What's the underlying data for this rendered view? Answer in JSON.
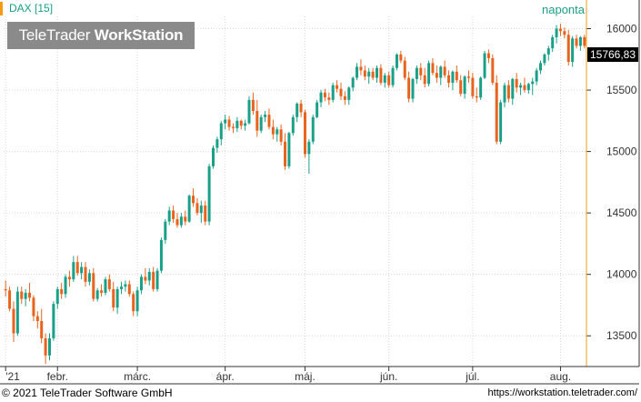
{
  "header": {
    "symbol_label": "DAX [15]",
    "logo_text_light": "TeleTrader ",
    "logo_text_bold": "WorkStation",
    "period_label": "naponta",
    "last_price_label": "15766,83"
  },
  "footer": {
    "copyright": "© 2021  TeleTrader Software GmbH",
    "url": "https://workstation.teletrader.com/"
  },
  "colors": {
    "up": "#1aa088",
    "down": "#e8641e",
    "grid": "#d8d8d8",
    "accent": "#f39c12"
  },
  "chart_data": {
    "type": "candlestick",
    "ylim": [
      13250,
      16100
    ],
    "y_ticks": [
      13500,
      14000,
      14500,
      15000,
      15500,
      16000
    ],
    "y_tick_labels": [
      "13500",
      "14000",
      "14500",
      "15000",
      "15500",
      "16000"
    ],
    "x_ticks": [
      {
        "index": 0,
        "label": "'21"
      },
      {
        "index": 13,
        "label": "febr."
      },
      {
        "index": 33,
        "label": "márc."
      },
      {
        "index": 55,
        "label": "ápr."
      },
      {
        "index": 75,
        "label": "máj."
      },
      {
        "index": 96,
        "label": "jún."
      },
      {
        "index": 117,
        "label": "júl."
      },
      {
        "index": 139,
        "label": "aug."
      }
    ],
    "candles": [
      [
        13880,
        13950,
        13820,
        13870
      ],
      [
        13870,
        13900,
        13700,
        13720
      ],
      [
        13720,
        13780,
        13450,
        13520
      ],
      [
        13520,
        13900,
        13500,
        13860
      ],
      [
        13860,
        13900,
        13760,
        13800
      ],
      [
        13800,
        13880,
        13740,
        13850
      ],
      [
        13850,
        13930,
        13780,
        13810
      ],
      [
        13810,
        13830,
        13620,
        13660
      ],
      [
        13660,
        13700,
        13560,
        13620
      ],
      [
        13620,
        13720,
        13440,
        13480
      ],
      [
        13480,
        13520,
        13270,
        13340
      ],
      [
        13340,
        13520,
        13300,
        13480
      ],
      [
        13480,
        13780,
        13460,
        13760
      ],
      [
        13760,
        13900,
        13720,
        13880
      ],
      [
        13880,
        13930,
        13800,
        13840
      ],
      [
        13840,
        14000,
        13810,
        13980
      ],
      [
        13980,
        14030,
        13900,
        13960
      ],
      [
        13960,
        14150,
        13940,
        14100
      ],
      [
        14100,
        14150,
        13990,
        14010
      ],
      [
        14010,
        14100,
        13960,
        14060
      ],
      [
        14060,
        14100,
        13900,
        13940
      ],
      [
        13940,
        14040,
        13910,
        14010
      ],
      [
        14010,
        14050,
        13780,
        13800
      ],
      [
        13800,
        13890,
        13780,
        13870
      ],
      [
        13870,
        13920,
        13820,
        13850
      ],
      [
        13850,
        13980,
        13830,
        13960
      ],
      [
        13960,
        14000,
        13860,
        13880
      ],
      [
        13880,
        13940,
        13700,
        13730
      ],
      [
        13730,
        13900,
        13680,
        13880
      ],
      [
        13880,
        13940,
        13840,
        13900
      ],
      [
        13900,
        13950,
        13860,
        13920
      ],
      [
        13920,
        13950,
        13820,
        13840
      ],
      [
        13840,
        13860,
        13660,
        13700
      ],
      [
        13700,
        13900,
        13660,
        13870
      ],
      [
        13870,
        14000,
        13840,
        13980
      ],
      [
        13980,
        14050,
        13920,
        13950
      ],
      [
        13950,
        14050,
        13910,
        14020
      ],
      [
        14020,
        14060,
        13860,
        13880
      ],
      [
        13880,
        14050,
        13860,
        14030
      ],
      [
        14030,
        14300,
        14010,
        14280
      ],
      [
        14280,
        14450,
        14250,
        14430
      ],
      [
        14430,
        14550,
        14400,
        14520
      ],
      [
        14520,
        14560,
        14420,
        14450
      ],
      [
        14450,
        14500,
        14380,
        14400
      ],
      [
        14400,
        14500,
        14380,
        14470
      ],
      [
        14470,
        14520,
        14400,
        14430
      ],
      [
        14430,
        14650,
        14420,
        14640
      ],
      [
        14640,
        14700,
        14550,
        14580
      ],
      [
        14580,
        14620,
        14480,
        14500
      ],
      [
        14500,
        14600,
        14420,
        14560
      ],
      [
        14560,
        14600,
        14400,
        14430
      ],
      [
        14430,
        14900,
        14400,
        14880
      ],
      [
        14880,
        15050,
        14860,
        15030
      ],
      [
        15030,
        15120,
        14990,
        15100
      ],
      [
        15100,
        15250,
        15050,
        15230
      ],
      [
        15230,
        15300,
        15180,
        15260
      ],
      [
        15260,
        15290,
        15170,
        15200
      ],
      [
        15200,
        15230,
        15150,
        15190
      ],
      [
        15190,
        15280,
        15160,
        15250
      ],
      [
        15250,
        15260,
        15180,
        15210
      ],
      [
        15210,
        15260,
        15170,
        15230
      ],
      [
        15230,
        15450,
        15220,
        15420
      ],
      [
        15420,
        15480,
        15300,
        15330
      ],
      [
        15330,
        15420,
        15120,
        15170
      ],
      [
        15170,
        15300,
        15150,
        15280
      ],
      [
        15280,
        15330,
        15240,
        15300
      ],
      [
        15300,
        15350,
        15180,
        15200
      ],
      [
        15200,
        15260,
        15100,
        15140
      ],
      [
        15140,
        15200,
        15080,
        15180
      ],
      [
        15180,
        15220,
        15050,
        15080
      ],
      [
        15080,
        15150,
        14850,
        14880
      ],
      [
        14880,
        15160,
        14860,
        15150
      ],
      [
        15150,
        15300,
        15130,
        15280
      ],
      [
        15280,
        15400,
        15240,
        15390
      ],
      [
        15390,
        15420,
        15280,
        15320
      ],
      [
        15320,
        15340,
        14950,
        14980
      ],
      [
        14980,
        15100,
        14820,
        15080
      ],
      [
        15080,
        15300,
        15060,
        15280
      ],
      [
        15280,
        15420,
        15270,
        15400
      ],
      [
        15400,
        15500,
        15360,
        15480
      ],
      [
        15480,
        15510,
        15410,
        15440
      ],
      [
        15440,
        15480,
        15380,
        15420
      ],
      [
        15420,
        15560,
        15400,
        15540
      ],
      [
        15540,
        15580,
        15480,
        15510
      ],
      [
        15510,
        15560,
        15420,
        15450
      ],
      [
        15450,
        15490,
        15380,
        15420
      ],
      [
        15420,
        15530,
        15380,
        15520
      ],
      [
        15520,
        15610,
        15490,
        15600
      ],
      [
        15600,
        15720,
        15580,
        15690
      ],
      [
        15690,
        15750,
        15620,
        15660
      ],
      [
        15660,
        15700,
        15580,
        15610
      ],
      [
        15610,
        15680,
        15550,
        15650
      ],
      [
        15650,
        15680,
        15580,
        15600
      ],
      [
        15600,
        15700,
        15560,
        15680
      ],
      [
        15680,
        15710,
        15540,
        15560
      ],
      [
        15560,
        15640,
        15520,
        15620
      ],
      [
        15620,
        15650,
        15520,
        15540
      ],
      [
        15540,
        15700,
        15520,
        15680
      ],
      [
        15680,
        15800,
        15660,
        15790
      ],
      [
        15790,
        15820,
        15720,
        15740
      ],
      [
        15740,
        15770,
        15580,
        15600
      ],
      [
        15600,
        15650,
        15400,
        15430
      ],
      [
        15430,
        15600,
        15400,
        15590
      ],
      [
        15590,
        15700,
        15550,
        15680
      ],
      [
        15680,
        15720,
        15580,
        15620
      ],
      [
        15620,
        15680,
        15520,
        15550
      ],
      [
        15550,
        15740,
        15530,
        15720
      ],
      [
        15720,
        15760,
        15620,
        15640
      ],
      [
        15640,
        15700,
        15560,
        15600
      ],
      [
        15600,
        15700,
        15540,
        15690
      ],
      [
        15690,
        15740,
        15600,
        15620
      ],
      [
        15620,
        15660,
        15520,
        15560
      ],
      [
        15560,
        15660,
        15500,
        15650
      ],
      [
        15650,
        15700,
        15560,
        15580
      ],
      [
        15580,
        15620,
        15450,
        15470
      ],
      [
        15470,
        15620,
        15430,
        15610
      ],
      [
        15610,
        15660,
        15560,
        15600
      ],
      [
        15600,
        15640,
        15430,
        15450
      ],
      [
        15450,
        15520,
        15400,
        15440
      ],
      [
        15440,
        15610,
        15420,
        15600
      ],
      [
        15600,
        15820,
        15590,
        15800
      ],
      [
        15800,
        15830,
        15720,
        15760
      ],
      [
        15760,
        15790,
        15540,
        15560
      ],
      [
        15560,
        15620,
        15060,
        15080
      ],
      [
        15080,
        15420,
        15060,
        15400
      ],
      [
        15400,
        15560,
        15360,
        15540
      ],
      [
        15540,
        15580,
        15400,
        15430
      ],
      [
        15430,
        15600,
        15380,
        15590
      ],
      [
        15590,
        15640,
        15480,
        15520
      ],
      [
        15520,
        15560,
        15460,
        15540
      ],
      [
        15540,
        15600,
        15480,
        15500
      ],
      [
        15500,
        15560,
        15470,
        15550
      ],
      [
        15550,
        15600,
        15460,
        15570
      ],
      [
        15570,
        15680,
        15540,
        15660
      ],
      [
        15660,
        15740,
        15630,
        15720
      ],
      [
        15720,
        15800,
        15700,
        15790
      ],
      [
        15790,
        15860,
        15740,
        15840
      ],
      [
        15840,
        15950,
        15810,
        15930
      ],
      [
        15930,
        16030,
        15880,
        16000
      ],
      [
        16000,
        16040,
        15940,
        15980
      ],
      [
        15980,
        16010,
        15920,
        15950
      ],
      [
        15950,
        15990,
        15700,
        15730
      ],
      [
        15730,
        15940,
        15690,
        15920
      ],
      [
        15920,
        15950,
        15840,
        15860
      ],
      [
        15860,
        15940,
        15820,
        15930
      ],
      [
        15930,
        15950,
        15840,
        15860
      ]
    ]
  }
}
